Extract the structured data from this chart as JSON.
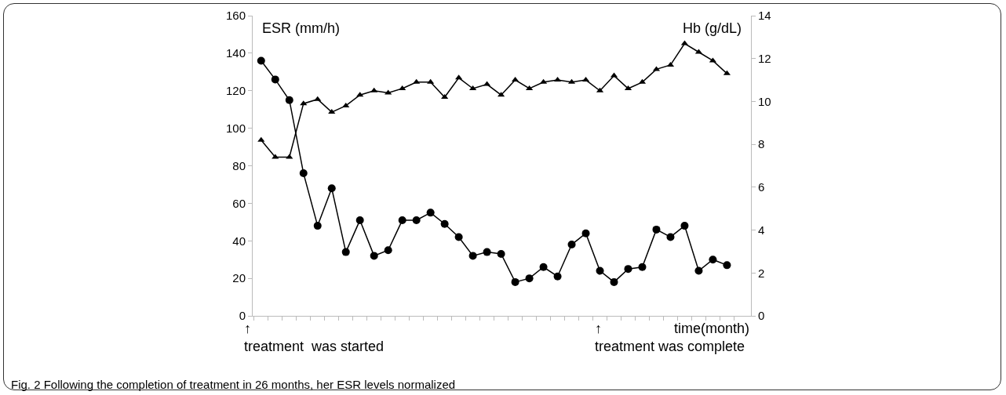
{
  "chart_data": {
    "type": "line",
    "categories": [
      null,
      null,
      null,
      null,
      null,
      null,
      null,
      null,
      null,
      null,
      null,
      null,
      null,
      null,
      null,
      null,
      null,
      null,
      null,
      null,
      null,
      null,
      null,
      null,
      null,
      null,
      null,
      null,
      null,
      null,
      null,
      null,
      null,
      null
    ],
    "series": [
      {
        "color": "#000000",
        "marker": "circle",
        "values": [
          136,
          126,
          115,
          76,
          48,
          68,
          34,
          51,
          32,
          35,
          51,
          51,
          55,
          49,
          42,
          32,
          34,
          33,
          18,
          20,
          26,
          21,
          38,
          44,
          24,
          18,
          25,
          26,
          46,
          42,
          48,
          24,
          30,
          27
        ]
      },
      {
        "color": "#000000",
        "marker": "triangle",
        "axis": "y2",
        "values": [
          8.2,
          7.4,
          7.4,
          9.9,
          10.1,
          9.5,
          9.8,
          10.3,
          10.5,
          10.4,
          10.6,
          10.9,
          10.9,
          10.2,
          11.1,
          10.6,
          10.8,
          10.3,
          11.0,
          10.6,
          10.9,
          11.0,
          10.9,
          11.0,
          10.5,
          11.2,
          10.6,
          10.9,
          11.5,
          11.7,
          12.7,
          12.3,
          11.9,
          11.3
        ]
      }
    ],
    "ylabel": "ESR (mm/h)",
    "y2label": "Hb (g/dL)",
    "xlabel": "time(month)",
    "ylim": [
      0,
      160
    ],
    "yticks": [
      0,
      20,
      40,
      60,
      80,
      100,
      120,
      140,
      160
    ],
    "y2lim": [
      0,
      14
    ],
    "y2ticks": [
      0,
      2,
      4,
      6,
      8,
      10,
      12,
      14
    ],
    "tick_labels": "y",
    "grid": false,
    "line_style": "solid",
    "annotations": [
      "↑\ntreatment  was started",
      "↑\ntreatment was complete",
      "Fig. 2 Following the completion of treatment in 26 months, her ESR levels normalized"
    ]
  }
}
